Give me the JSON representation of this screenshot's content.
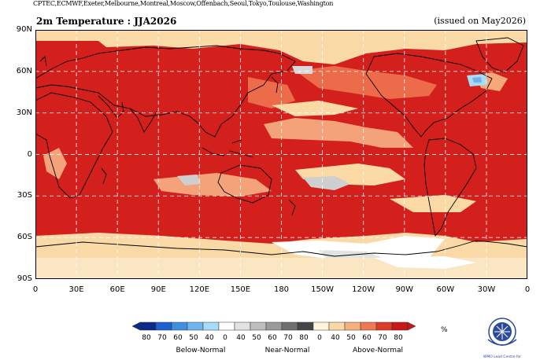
{
  "header": {
    "centers": "CPTEC,ECMWF,Exeter,Melbourne,Montreal,Moscow,Offenbach,Seoul,Tokyo,Toulouse,Washington",
    "title": "2m Temperature : JJA2026",
    "issued": "(issued on May2026)"
  },
  "map": {
    "lat_labels": [
      "90N",
      "60N",
      "30N",
      "0",
      "30S",
      "60S",
      "90S"
    ],
    "lon_labels": [
      "0",
      "30E",
      "60E",
      "90E",
      "120E",
      "150E",
      "180",
      "150W",
      "120W",
      "90W",
      "60W",
      "30W",
      "0"
    ],
    "grid": "dashed",
    "dominant_category": "Above-Normal"
  },
  "legend": {
    "ticks_below": [
      "80",
      "70",
      "60",
      "50",
      "40"
    ],
    "ticks_near": [
      "0",
      "40",
      "50",
      "60",
      "70",
      "80"
    ],
    "ticks_above": [
      "0",
      "40",
      "50",
      "60",
      "70",
      "80"
    ],
    "ticks_lead": "0",
    "unit": "%",
    "below_label": "Below-Normal",
    "near_label": "Near-Normal",
    "above_label": "Above-Normal",
    "colors_below": [
      "#0b2a8c",
      "#1f5fd0",
      "#3f8fe0",
      "#6fb4ee",
      "#a8dbf6"
    ],
    "colors_near": [
      "#ffffff",
      "#e2e2e2",
      "#bdbdbd",
      "#9a9a9a",
      "#707070",
      "#454545"
    ],
    "colors_above": [
      "#fff6dc",
      "#fbd9a4",
      "#f6b07c",
      "#ee7a52",
      "#dc3a2a",
      "#c9171a"
    ]
  },
  "logo": {
    "text": "WMO Lead Centre for"
  }
}
